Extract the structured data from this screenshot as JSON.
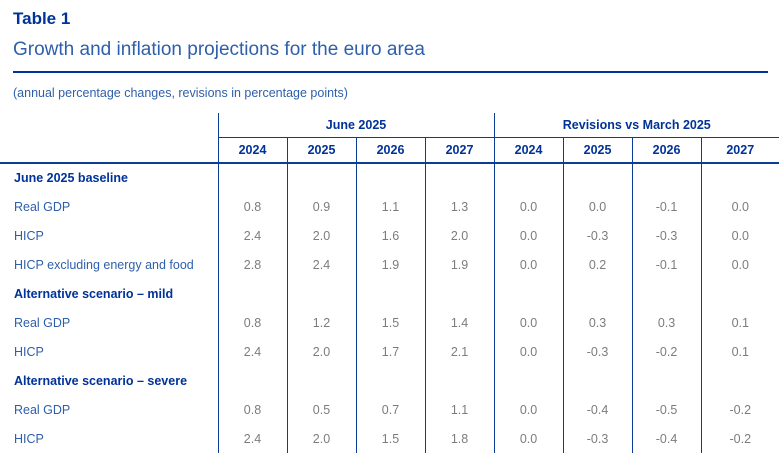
{
  "header": {
    "table_label": "Table 1",
    "title": "Growth and inflation projections for the euro area",
    "note": "(annual percentage changes, revisions in percentage points)"
  },
  "table": {
    "column_groups": [
      {
        "label": "June 2025",
        "years": [
          "2024",
          "2025",
          "2026",
          "2027"
        ]
      },
      {
        "label": "Revisions vs March 2025",
        "years": [
          "2024",
          "2025",
          "2026",
          "2027"
        ]
      }
    ],
    "sections": [
      {
        "label": "June 2025 baseline",
        "rows": [
          {
            "label": "Real GDP",
            "values": [
              "0.8",
              "0.9",
              "1.1",
              "1.3",
              "0.0",
              "0.0",
              "-0.1",
              "0.0"
            ]
          },
          {
            "label": "HICP",
            "values": [
              "2.4",
              "2.0",
              "1.6",
              "2.0",
              "0.0",
              "-0.3",
              "-0.3",
              "0.0"
            ]
          },
          {
            "label": "HICP excluding energy and food",
            "values": [
              "2.8",
              "2.4",
              "1.9",
              "1.9",
              "0.0",
              "0.2",
              "-0.1",
              "0.0"
            ]
          }
        ]
      },
      {
        "label": "Alternative scenario – mild",
        "rows": [
          {
            "label": "Real GDP",
            "values": [
              "0.8",
              "1.2",
              "1.5",
              "1.4",
              "0.0",
              "0.3",
              "0.3",
              "0.1"
            ]
          },
          {
            "label": "HICP",
            "values": [
              "2.4",
              "2.0",
              "1.7",
              "2.1",
              "0.0",
              "-0.3",
              "-0.2",
              "0.1"
            ]
          }
        ]
      },
      {
        "label": "Alternative scenario – severe",
        "rows": [
          {
            "label": "Real GDP",
            "values": [
              "0.8",
              "0.5",
              "0.7",
              "1.1",
              "0.0",
              "-0.4",
              "-0.5",
              "-0.2"
            ]
          },
          {
            "label": "HICP",
            "values": [
              "2.4",
              "2.0",
              "1.5",
              "1.8",
              "0.0",
              "-0.3",
              "-0.4",
              "-0.2"
            ]
          }
        ]
      }
    ]
  },
  "colors": {
    "title_blue": "#003299",
    "text_blue": "#2e5faa",
    "value_grey": "#7c7c7c",
    "grid_blue": "#0d3c94"
  },
  "chart_data": {
    "type": "table",
    "title": "Growth and inflation projections for the euro area",
    "subtitle": "(annual percentage changes, revisions in percentage points)",
    "column_groups": [
      {
        "label": "June 2025",
        "columns": [
          "2024",
          "2025",
          "2026",
          "2027"
        ]
      },
      {
        "label": "Revisions vs March 2025",
        "columns": [
          "2024",
          "2025",
          "2026",
          "2027"
        ]
      }
    ],
    "rows": [
      {
        "section": "June 2025 baseline",
        "label": "Real GDP",
        "june_2025": [
          0.8,
          0.9,
          1.1,
          1.3
        ],
        "revisions_vs_march_2025": [
          0.0,
          0.0,
          -0.1,
          0.0
        ]
      },
      {
        "section": "June 2025 baseline",
        "label": "HICP",
        "june_2025": [
          2.4,
          2.0,
          1.6,
          2.0
        ],
        "revisions_vs_march_2025": [
          0.0,
          -0.3,
          -0.3,
          0.0
        ]
      },
      {
        "section": "June 2025 baseline",
        "label": "HICP excluding energy and food",
        "june_2025": [
          2.8,
          2.4,
          1.9,
          1.9
        ],
        "revisions_vs_march_2025": [
          0.0,
          0.2,
          -0.1,
          0.0
        ]
      },
      {
        "section": "Alternative scenario – mild",
        "label": "Real GDP",
        "june_2025": [
          0.8,
          1.2,
          1.5,
          1.4
        ],
        "revisions_vs_march_2025": [
          0.0,
          0.3,
          0.3,
          0.1
        ]
      },
      {
        "section": "Alternative scenario – mild",
        "label": "HICP",
        "june_2025": [
          2.4,
          2.0,
          1.7,
          2.1
        ],
        "revisions_vs_march_2025": [
          0.0,
          -0.3,
          -0.2,
          0.1
        ]
      },
      {
        "section": "Alternative scenario – severe",
        "label": "Real GDP",
        "june_2025": [
          0.8,
          0.5,
          0.7,
          1.1
        ],
        "revisions_vs_march_2025": [
          0.0,
          -0.4,
          -0.5,
          -0.2
        ]
      },
      {
        "section": "Alternative scenario – severe",
        "label": "HICP",
        "june_2025": [
          2.4,
          2.0,
          1.5,
          1.8
        ],
        "revisions_vs_march_2025": [
          0.0,
          -0.3,
          -0.4,
          -0.2
        ]
      }
    ]
  }
}
